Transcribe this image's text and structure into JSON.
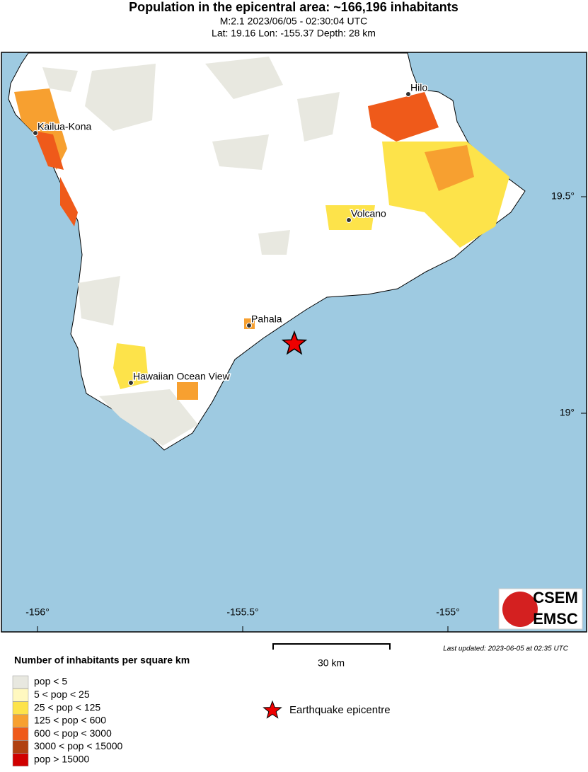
{
  "header": {
    "title": "Population in the epicentral area: ~166,196 inhabitants",
    "subtitle": "M:2.1 2023/06/05 - 02:30:04 UTC",
    "location": "Lat: 19.16 Lon: -155.37 Depth: 28 km"
  },
  "map": {
    "places": [
      {
        "label": "Kailua-Kona"
      },
      {
        "label": "Hilo"
      },
      {
        "label": "Volcano"
      },
      {
        "label": "Pahala"
      },
      {
        "label": "Hawaiian Ocean View"
      }
    ],
    "lon_labels": [
      "-156°",
      "-155.5°",
      "-155°"
    ],
    "lat_labels": [
      "19.5°",
      "19°"
    ]
  },
  "scale_bar": {
    "label": "30 km"
  },
  "last_updated": "Last updated: 2023-06-05 at 02:35 UTC",
  "legend": {
    "title": "Number of inhabitants per square km",
    "items": [
      {
        "label": "pop < 5",
        "color": "#e8e8e0"
      },
      {
        "label": "5 < pop < 25",
        "color": "#fff8c0"
      },
      {
        "label": "25 < pop < 125",
        "color": "#fde34a"
      },
      {
        "label": "125 < pop < 600",
        "color": "#f7a030"
      },
      {
        "label": "600 < pop < 3000",
        "color": "#ef5a1a"
      },
      {
        "label": "3000 < pop < 15000",
        "color": "#b04010"
      },
      {
        "label": "pop > 15000",
        "color": "#d00000"
      }
    ]
  },
  "epicentre_label": "Earthquake epicentre",
  "logo": {
    "top": "CSEM",
    "bottom": "EMSC"
  }
}
